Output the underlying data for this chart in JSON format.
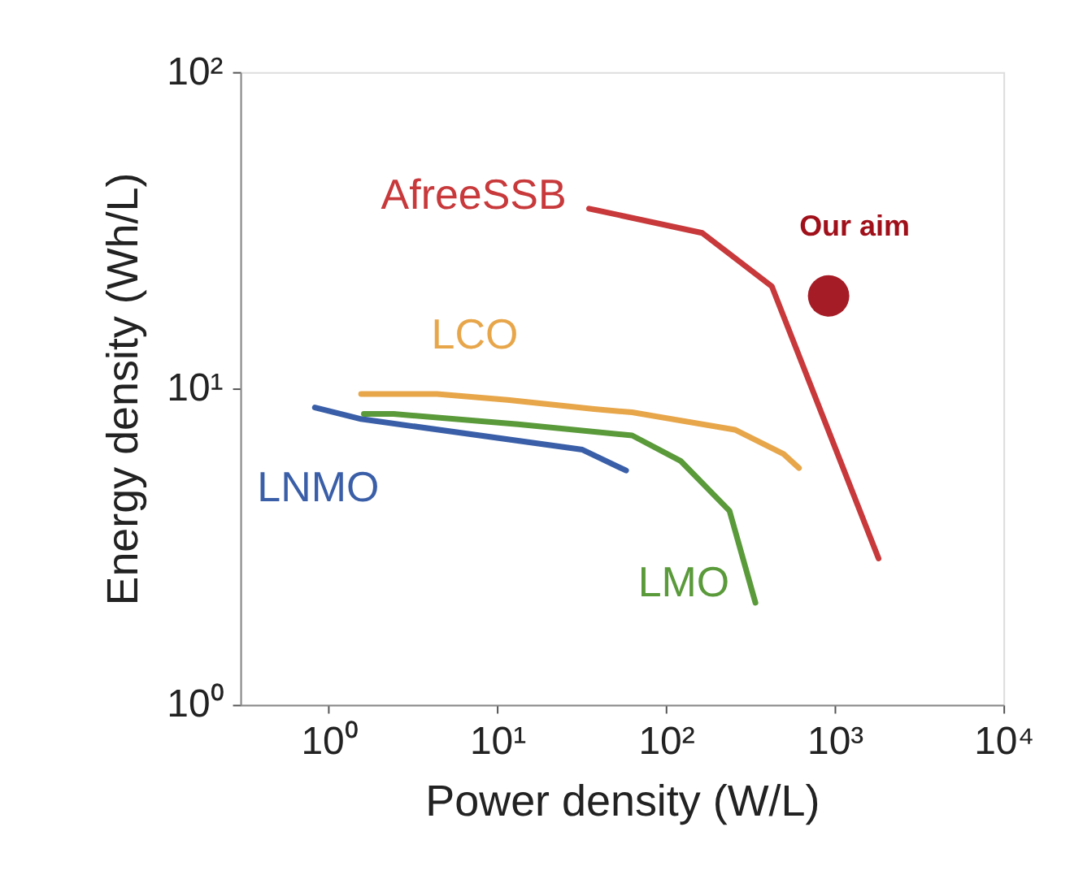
{
  "chart_data": {
    "type": "line",
    "xlabel": "Power density (W/L)",
    "ylabel": "Energy density (Wh/L)",
    "log": "xy",
    "grid": false,
    "legend": false,
    "marker": "none",
    "line_style": "solid",
    "xlim": [
      0.3,
      10000
    ],
    "ylim": [
      1,
      100
    ],
    "xticks": [
      {
        "value": 1,
        "label": "10⁰"
      },
      {
        "value": 10,
        "label": "10¹"
      },
      {
        "value": 100,
        "label": "10²"
      },
      {
        "value": 1000,
        "label": "10³"
      },
      {
        "value": 10000,
        "label": "10⁴"
      }
    ],
    "yticks": [
      {
        "value": 1,
        "label": "10⁰"
      },
      {
        "value": 10,
        "label": "10¹"
      },
      {
        "value": 100,
        "label": "10²"
      }
    ],
    "series": [
      {
        "name": "AfreeSSB",
        "color": "#c8393b",
        "x": [
          35,
          164,
          424,
          1820
        ],
        "values": [
          37,
          31,
          21,
          2.9
        ]
      },
      {
        "name": "LCO",
        "color": "#e8a64a",
        "x": [
          1.56,
          4.4,
          11.5,
          37.5,
          63,
          256,
          498,
          614
        ],
        "values": [
          9.6,
          9.6,
          9.2,
          8.6,
          8.4,
          7.4,
          6.2,
          5.6
        ]
      },
      {
        "name": "LNMO",
        "color": "#3a5fa8",
        "x": [
          0.83,
          1.56,
          32,
          58
        ],
        "values": [
          8.7,
          8.0,
          6.4,
          5.5
        ]
      },
      {
        "name": "LMO",
        "color": "#5a9a3a",
        "x": [
          1.62,
          2.43,
          13.3,
          63,
          122,
          238,
          339
        ],
        "values": [
          8.3,
          8.3,
          7.7,
          7.1,
          5.9,
          4.1,
          2.1
        ]
      },
      {
        "name": "Our aim",
        "type": "scatter",
        "marker": "circle",
        "color": "#a0101a",
        "x": [
          920
        ],
        "values": [
          19.6
        ]
      }
    ]
  }
}
